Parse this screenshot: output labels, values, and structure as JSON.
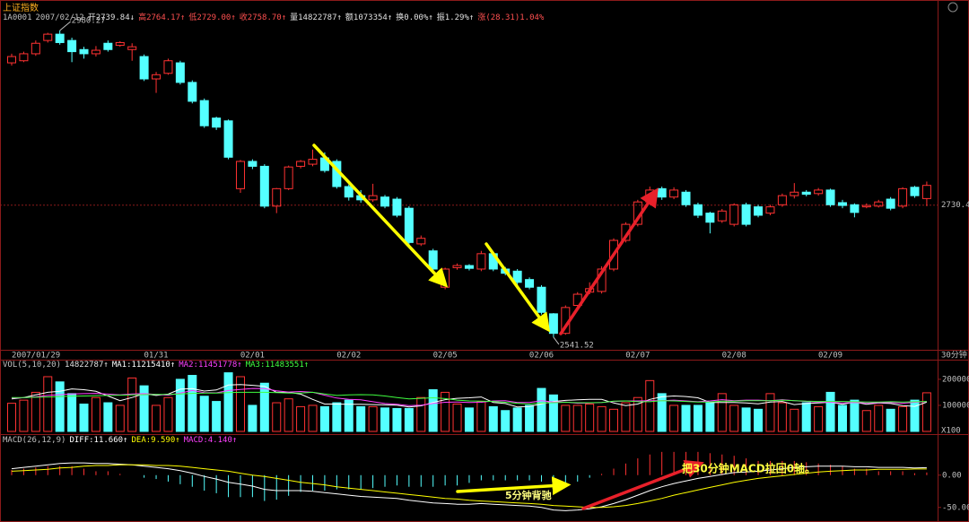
{
  "header": {
    "title": "上证指数",
    "items": [
      {
        "text": "1A0001",
        "color": "#c0c0c0"
      },
      {
        "text": "2007/02/12",
        "color": "#c0c0c0"
      },
      {
        "text": "开2739.84↓",
        "color": "#e0e0e0"
      },
      {
        "text": "高2764.17↑",
        "color": "#ff5050"
      },
      {
        "text": "低2729.00↑",
        "color": "#ff5050"
      },
      {
        "text": "收2758.70↑",
        "color": "#ff5050"
      },
      {
        "text": "量14822787↑",
        "color": "#e0e0e0"
      },
      {
        "text": "额1073354↑",
        "color": "#e0e0e0"
      },
      {
        "text": "换0.00%↑",
        "color": "#e0e0e0"
      },
      {
        "text": "振1.29%↑",
        "color": "#e0e0e0"
      },
      {
        "text": "涨(28.31)1.04%",
        "color": "#ff5050"
      }
    ]
  },
  "chart_data": [
    {
      "type": "candlestick",
      "period_label": "30分钟",
      "categories": [
        "2007/01/29",
        null,
        null,
        null,
        null,
        null,
        null,
        null,
        null,
        null,
        null,
        null,
        "01/31",
        null,
        null,
        null,
        null,
        null,
        null,
        null,
        "02/01",
        null,
        null,
        null,
        null,
        null,
        null,
        null,
        "02/02",
        null,
        null,
        null,
        null,
        null,
        null,
        null,
        "02/05",
        null,
        null,
        null,
        null,
        null,
        null,
        null,
        "02/06",
        null,
        null,
        null,
        null,
        null,
        null,
        null,
        "02/07",
        null,
        null,
        null,
        null,
        null,
        null,
        null,
        "02/08",
        null,
        null,
        null,
        null,
        null,
        null,
        null,
        "02/09",
        null,
        null,
        null,
        null,
        null,
        null,
        null,
        null
      ],
      "open": [
        2934,
        2937,
        2947,
        2966,
        2975,
        2966,
        2953,
        2947,
        2962,
        2959,
        2953,
        2943,
        2911,
        2919,
        2934,
        2906,
        2880,
        2855,
        2851,
        2754,
        2793,
        2786,
        2729,
        2754,
        2786,
        2789,
        2798,
        2793,
        2757,
        2744,
        2738,
        2742,
        2739,
        2726,
        2675,
        2665,
        2613,
        2641,
        2644,
        2639,
        2661,
        2639,
        2636,
        2624,
        2613,
        2575,
        2547,
        2587,
        2606,
        2607,
        2639,
        2680,
        2703,
        2735,
        2754,
        2742,
        2749,
        2731,
        2719,
        2708,
        2703,
        2731,
        2728,
        2719,
        2731,
        2744,
        2749,
        2747,
        2752,
        2734,
        2731,
        2728,
        2729,
        2739,
        2729,
        2756,
        2739.84
      ],
      "high": [
        2947,
        2950,
        2966,
        2977,
        2980.27,
        2970,
        2957,
        2958,
        2966,
        2965,
        2962,
        2946,
        2921,
        2940,
        2937,
        2909,
        2883,
        2857,
        2853,
        2795,
        2796,
        2789,
        2755,
        2787,
        2795,
        2810,
        2806,
        2796,
        2760,
        2752,
        2761,
        2745,
        2742,
        2729,
        2687,
        2668,
        2641,
        2647,
        2646,
        2665,
        2664,
        2642,
        2639,
        2627,
        2616,
        2576,
        2587,
        2606,
        2620,
        2643,
        2683,
        2706,
        2738,
        2757,
        2757,
        2756,
        2752,
        2734,
        2721,
        2725,
        2733,
        2734,
        2731,
        2731,
        2747,
        2762,
        2752,
        2755,
        2754,
        2738,
        2733,
        2733,
        2738,
        2742,
        2756,
        2758,
        2764.17
      ],
      "low": [
        2930,
        2935,
        2944,
        2963,
        2960,
        2935,
        2940,
        2943,
        2950,
        2957,
        2937,
        2908,
        2891,
        2917,
        2903,
        2876,
        2841,
        2838,
        2796,
        2748,
        2782,
        2726,
        2719,
        2752,
        2783,
        2786,
        2777,
        2754,
        2737,
        2734,
        2735,
        2726,
        2713,
        2674,
        2672,
        2636,
        2610,
        2638,
        2637,
        2636,
        2636,
        2630,
        2616,
        2610,
        2574,
        2541.52,
        2545,
        2584,
        2603,
        2604,
        2636,
        2677,
        2700,
        2732,
        2738,
        2739,
        2728,
        2712,
        2690,
        2705,
        2700,
        2700,
        2713,
        2716,
        2728,
        2740,
        2743,
        2744,
        2728,
        2726,
        2713,
        2726,
        2727,
        2723,
        2726,
        2741,
        2729.0
      ],
      "close": [
        2943,
        2947,
        2962,
        2975,
        2963,
        2950,
        2947,
        2952,
        2953,
        2963,
        2957,
        2911,
        2917,
        2937,
        2906,
        2879,
        2844,
        2842,
        2799,
        2793,
        2786,
        2729,
        2754,
        2785,
        2793,
        2796,
        2780,
        2757,
        2742,
        2738,
        2744,
        2729,
        2716,
        2677,
        2683,
        2639,
        2639,
        2644,
        2640,
        2661,
        2639,
        2633,
        2620,
        2613,
        2577,
        2547,
        2584,
        2603,
        2611,
        2639,
        2680,
        2703,
        2735,
        2752,
        2742,
        2752,
        2731,
        2716,
        2706,
        2722,
        2731,
        2703,
        2716,
        2728,
        2744,
        2749,
        2746,
        2752,
        2731,
        2730,
        2720,
        2730,
        2735,
        2726,
        2754,
        2744,
        2758.7
      ],
      "up_color": "#ff3232",
      "down_color": "#54ffff",
      "ylim": [
        2523.5,
        3023.9
      ],
      "yticks": [
        2730.4
      ]
    },
    {
      "type": "bar",
      "legend_title": "VOL(5,10,20)",
      "value_text": "14822787↑",
      "values": [
        108000,
        120000,
        150000,
        210000,
        190000,
        145000,
        105000,
        130000,
        110000,
        100000,
        205000,
        175000,
        100000,
        130000,
        200000,
        215000,
        135000,
        115000,
        225000,
        210000,
        100000,
        185000,
        110000,
        125000,
        95000,
        100000,
        95000,
        110000,
        120000,
        95000,
        95000,
        90000,
        88000,
        88000,
        130000,
        160000,
        150000,
        105000,
        90000,
        115000,
        95000,
        80000,
        90000,
        100000,
        165000,
        140000,
        100000,
        100000,
        105000,
        95000,
        85000,
        110000,
        130000,
        195000,
        145000,
        100000,
        100000,
        100000,
        110000,
        145000,
        100000,
        90000,
        85000,
        145000,
        110000,
        85000,
        110000,
        95000,
        150000,
        100000,
        120000,
        80000,
        100000,
        85000,
        95000,
        120000,
        148227.87
      ],
      "series": [
        {
          "name": "MA1:11215410↑",
          "color": "#ffffff",
          "values": [
            125000,
            130000,
            140000,
            150000,
            154000,
            163000,
            160000,
            154000,
            136000,
            118000,
            130000,
            145000,
            138000,
            143000,
            162000,
            164000,
            155000,
            159000,
            178000,
            180000,
            177000,
            173000,
            150000,
            150000,
            143000,
            123000,
            105000,
            105000,
            104000,
            104000,
            103000,
            102000,
            101000,
            94000,
            98000,
            111000,
            122000,
            127000,
            129000,
            132000,
            111000,
            107000,
            94000,
            96000,
            106000,
            115000,
            119000,
            121000,
            123000,
            123000,
            109000,
            99000,
            105000,
            123000,
            133000,
            136000,
            134000,
            129000,
            111000,
            111000,
            111000,
            109000,
            106000,
            113000,
            115000,
            103000,
            107000,
            109000,
            112000,
            104000,
            113000,
            104000,
            109000,
            107000,
            99000,
            96000,
            112154.1
          ]
        },
        {
          "name": "MA2:11451778↑",
          "color": "#ff40ff",
          "values": [
            128000,
            129000,
            133000,
            138000,
            141000,
            144000,
            145000,
            146000,
            143000,
            140000,
            144000,
            145000,
            142000,
            139000,
            147000,
            157000,
            149000,
            148000,
            157000,
            161000,
            165000,
            164000,
            156000,
            151000,
            153000,
            150000,
            139000,
            128000,
            123000,
            121000,
            114000,
            107000,
            104000,
            99000,
            101000,
            107000,
            112000,
            113000,
            111000,
            112000,
            117000,
            118000,
            111000,
            111000,
            118000,
            113000,
            113000,
            108000,
            109000,
            111000,
            115000,
            117000,
            117000,
            118000,
            118000,
            120000,
            117000,
            114000,
            117000,
            122000,
            118000,
            120000,
            120000,
            118000,
            122000,
            118000,
            115000,
            113000,
            112000,
            109000,
            111000,
            109000,
            110000,
            111000,
            108000,
            112000,
            114517.78
          ]
        },
        {
          "name": "MA3:11483551↑",
          "color": "#40ff40",
          "values": [
            130000,
            130000,
            131000,
            132000,
            134000,
            135000,
            136000,
            137000,
            138000,
            139000,
            140000,
            141000,
            142000,
            142000,
            144000,
            146000,
            147000,
            147000,
            149000,
            150000,
            150000,
            150000,
            149000,
            147000,
            147000,
            150000,
            144000,
            138000,
            140000,
            141000,
            140000,
            136000,
            130000,
            125000,
            127000,
            129000,
            126000,
            120000,
            117000,
            116000,
            115000,
            112000,
            108000,
            105000,
            109000,
            110000,
            112000,
            110000,
            110000,
            111000,
            116000,
            117000,
            114000,
            114000,
            118000,
            117000,
            115000,
            113000,
            113000,
            116000,
            116000,
            118000,
            118000,
            118000,
            120000,
            118000,
            116000,
            115000,
            115000,
            115000,
            114000,
            113000,
            113000,
            114000,
            113000,
            114000,
            114835.51
          ]
        }
      ],
      "unit_label": "X100",
      "ylim": [
        0,
        265000
      ],
      "yticks": [
        100000,
        200000
      ]
    },
    {
      "type": "macd",
      "legend_title": "MACD(26,12,9)",
      "series": [
        {
          "name": "DIFF:11.660↑",
          "color": "#ffffff",
          "values": [
            10,
            12,
            14,
            16,
            18,
            19,
            19,
            18,
            18,
            17,
            16,
            14,
            12,
            10,
            7,
            3,
            -2,
            -6,
            -11,
            -14,
            -17,
            -22,
            -24,
            -24,
            -24,
            -25,
            -27,
            -29,
            -31,
            -33,
            -34,
            -35,
            -36,
            -39,
            -41,
            -43,
            -44,
            -45,
            -45,
            -44,
            -45,
            -46,
            -47,
            -48,
            -50,
            -54,
            -55,
            -54,
            -52,
            -49,
            -44,
            -38,
            -31,
            -24,
            -18,
            -13,
            -9,
            -5,
            -2,
            1,
            4,
            5,
            6,
            8,
            10,
            12,
            13,
            14,
            14,
            14,
            13,
            13,
            12,
            12,
            12,
            11,
            11.66
          ]
        },
        {
          "name": "DEA:9.590↑",
          "color": "#ffff00",
          "values": [
            6,
            7,
            8,
            9,
            11,
            12,
            14,
            15,
            15,
            16,
            16,
            16,
            15,
            15,
            14,
            12,
            10,
            8,
            6,
            3,
            0,
            -2,
            -5,
            -8,
            -11,
            -13,
            -15,
            -18,
            -20,
            -22,
            -24,
            -26,
            -28,
            -30,
            -32,
            -34,
            -36,
            -37,
            -39,
            -40,
            -41,
            -42,
            -43,
            -44,
            -45,
            -47,
            -48,
            -49,
            -50,
            -50,
            -49,
            -47,
            -44,
            -40,
            -36,
            -31,
            -27,
            -23,
            -19,
            -15,
            -11,
            -8,
            -5,
            -3,
            -1,
            1,
            3,
            5,
            6,
            7,
            8,
            8,
            9,
            9,
            9,
            9.5,
            9.59
          ]
        }
      ],
      "histogram": {
        "name": "MACD:4.140↑",
        "color": "#ff40ff",
        "up_color": "#ff3232",
        "down_color": "#54ffff",
        "values": [
          8,
          10,
          12,
          14,
          14,
          14,
          10,
          6,
          6,
          2,
          0,
          -4,
          -6,
          -10,
          -14,
          -18,
          -24,
          -28,
          -34,
          -34,
          -34,
          -40,
          -38,
          -32,
          -26,
          -24,
          -24,
          -22,
          -22,
          -22,
          -20,
          -18,
          -16,
          -18,
          -18,
          -18,
          -16,
          -16,
          -12,
          -8,
          -8,
          -8,
          -8,
          -8,
          -10,
          -14,
          -14,
          -10,
          -4,
          2,
          10,
          18,
          26,
          32,
          36,
          36,
          36,
          36,
          34,
          32,
          30,
          26,
          22,
          22,
          22,
          22,
          20,
          18,
          16,
          14,
          10,
          10,
          6,
          6,
          6,
          3,
          4.14
        ]
      },
      "annotations": [
        "把30分钟MACD拉回0轴。",
        "5分钟背驰"
      ],
      "ylim": [
        -67,
        58
      ],
      "yticks": [
        {
          "value": 0,
          "label": "0.00"
        },
        {
          "value": -50,
          "label": "-50.00"
        }
      ]
    }
  ]
}
